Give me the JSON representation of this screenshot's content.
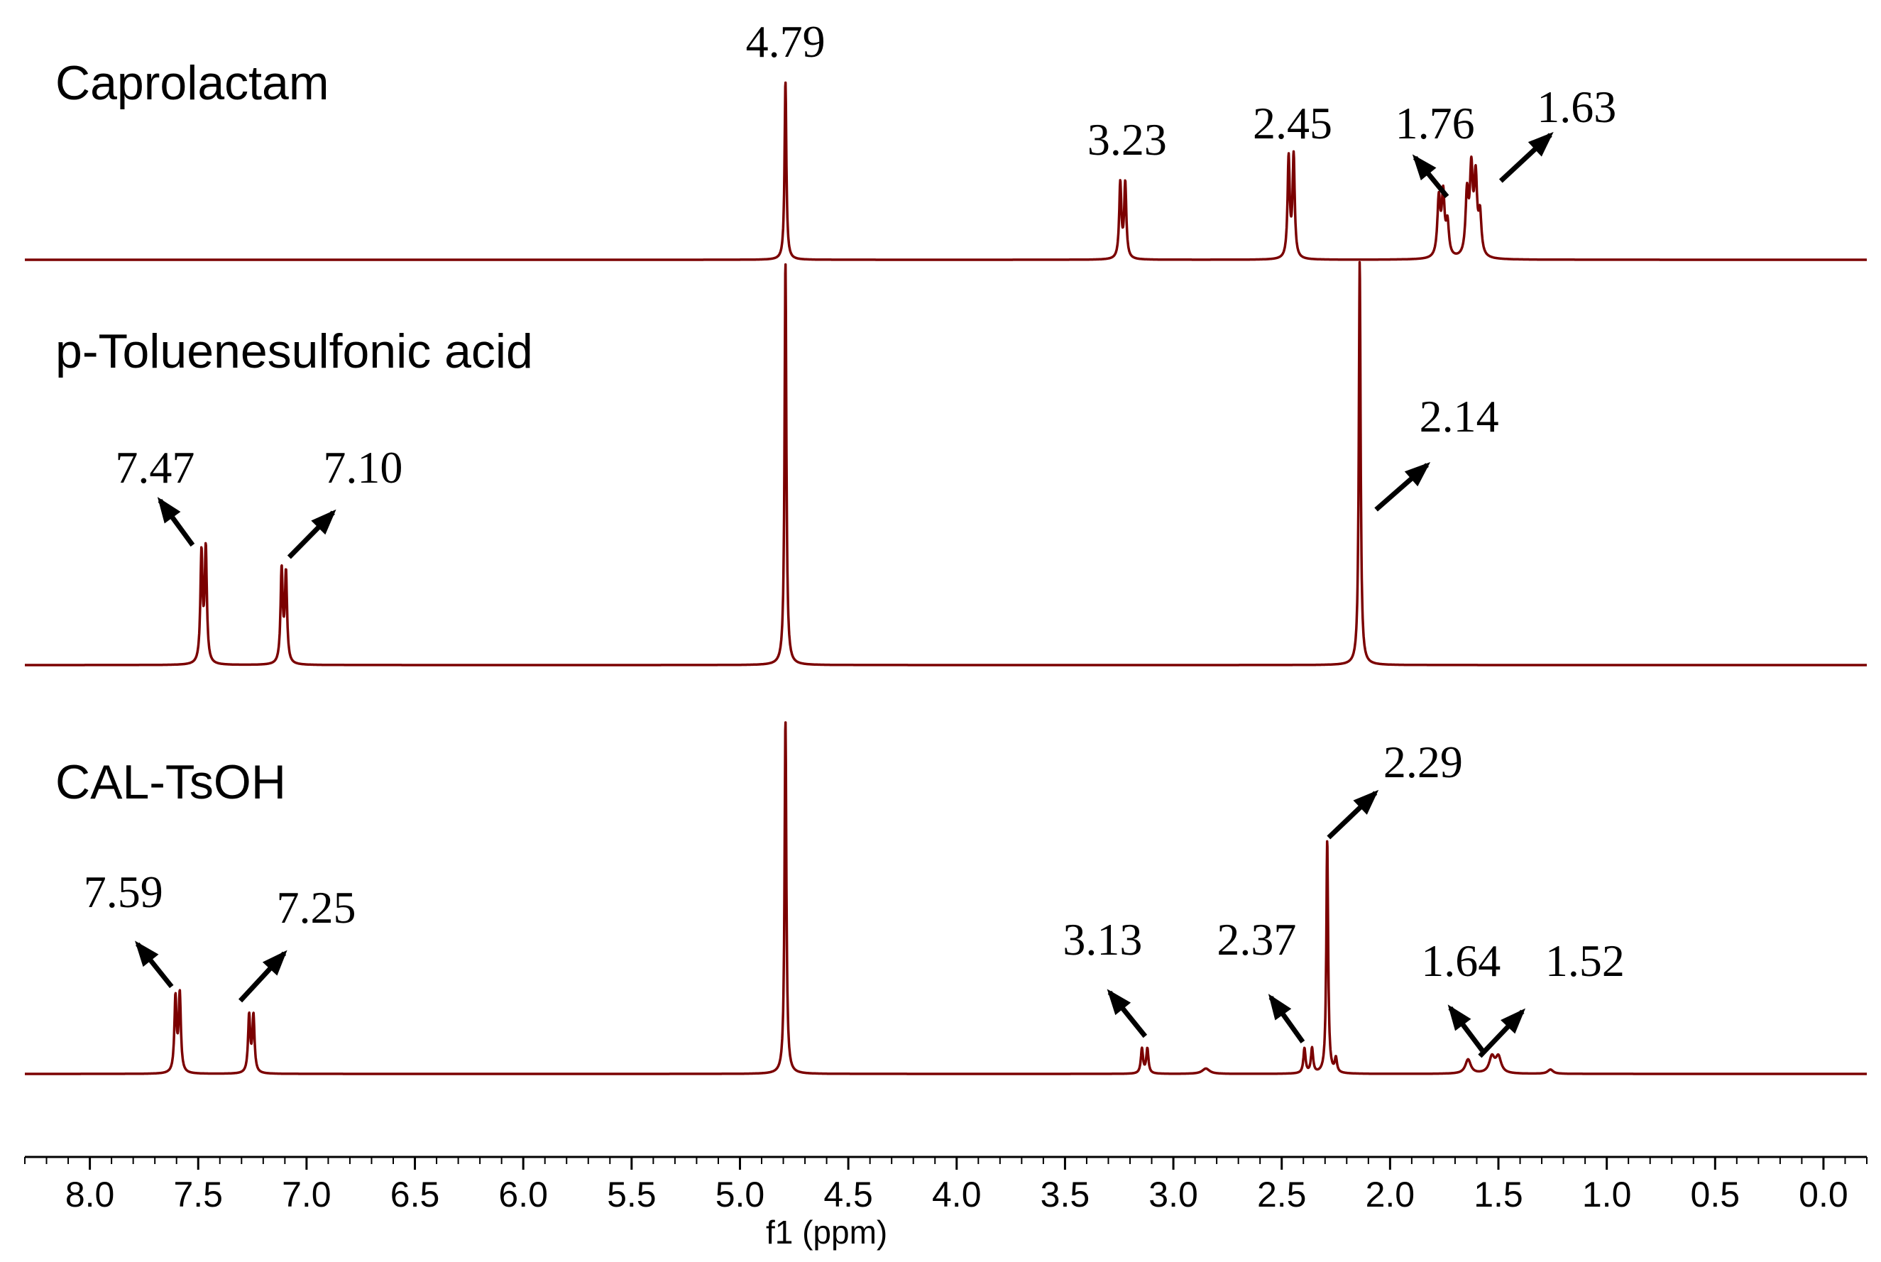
{
  "chart_data": {
    "type": "line",
    "title": "",
    "xlabel": "f1 (ppm)",
    "ylabel": "",
    "xlim": [
      8.3,
      -0.2
    ],
    "x_reversed": true,
    "grid": false,
    "line_color": "#7b0000",
    "ticks": [
      "8.0",
      "7.5",
      "7.0",
      "6.5",
      "6.0",
      "5.5",
      "5.0",
      "4.5",
      "4.0",
      "3.5",
      "3.0",
      "2.5",
      "2.0",
      "1.5",
      "1.0",
      "0.5",
      "0.0"
    ],
    "series": [
      {
        "name": "Caprolactam",
        "peaks": [
          {
            "ppm": 4.79,
            "height": 1.0,
            "width": 0.005
          },
          {
            "ppm": 3.245,
            "height": 0.42,
            "width": 0.006
          },
          {
            "ppm": 3.222,
            "height": 0.42,
            "width": 0.006
          },
          {
            "ppm": 2.468,
            "height": 0.56,
            "width": 0.006
          },
          {
            "ppm": 2.445,
            "height": 0.57,
            "width": 0.006
          },
          {
            "ppm": 1.775,
            "height": 0.32,
            "width": 0.008
          },
          {
            "ppm": 1.755,
            "height": 0.34,
            "width": 0.008
          },
          {
            "ppm": 1.735,
            "height": 0.18,
            "width": 0.008
          },
          {
            "ppm": 1.645,
            "height": 0.34,
            "width": 0.008
          },
          {
            "ppm": 1.625,
            "height": 0.46,
            "width": 0.008
          },
          {
            "ppm": 1.605,
            "height": 0.42,
            "width": 0.008
          },
          {
            "ppm": 1.585,
            "height": 0.22,
            "width": 0.008
          }
        ],
        "labels": [
          {
            "text": "4.79",
            "ppm": 4.79,
            "arrow": "none"
          },
          {
            "text": "3.23",
            "ppm": 3.23,
            "arrow": "none"
          },
          {
            "text": "2.45",
            "ppm": 2.45,
            "arrow": "none"
          },
          {
            "text": "1.76",
            "ppm": 1.76,
            "arrow": "up-left"
          },
          {
            "text": "1.63",
            "ppm": 1.63,
            "arrow": "up-right"
          }
        ]
      },
      {
        "name": "p-Toluenesulfonic acid",
        "peaks": [
          {
            "ppm": 7.485,
            "height": 0.27,
            "width": 0.006
          },
          {
            "ppm": 7.465,
            "height": 0.28,
            "width": 0.006
          },
          {
            "ppm": 7.115,
            "height": 0.23,
            "width": 0.006
          },
          {
            "ppm": 7.095,
            "height": 0.22,
            "width": 0.006
          },
          {
            "ppm": 4.79,
            "height": 1.0,
            "width": 0.005
          },
          {
            "ppm": 2.14,
            "height": 1.0,
            "width": 0.005
          }
        ],
        "labels": [
          {
            "text": "7.47",
            "ppm": 7.47,
            "arrow": "up-left"
          },
          {
            "text": "7.10",
            "ppm": 7.1,
            "arrow": "up-right"
          },
          {
            "text": "2.14",
            "ppm": 2.14,
            "arrow": "up-right"
          }
        ]
      },
      {
        "name": "CAL-TsOH",
        "peaks": [
          {
            "ppm": 7.605,
            "height": 0.21,
            "width": 0.006
          },
          {
            "ppm": 7.585,
            "height": 0.22,
            "width": 0.006
          },
          {
            "ppm": 7.265,
            "height": 0.16,
            "width": 0.006
          },
          {
            "ppm": 7.245,
            "height": 0.16,
            "width": 0.006
          },
          {
            "ppm": 4.79,
            "height": 1.0,
            "width": 0.005
          },
          {
            "ppm": 3.145,
            "height": 0.07,
            "width": 0.006
          },
          {
            "ppm": 3.12,
            "height": 0.07,
            "width": 0.006
          },
          {
            "ppm": 2.85,
            "height": 0.015,
            "width": 0.02
          },
          {
            "ppm": 2.395,
            "height": 0.07,
            "width": 0.006
          },
          {
            "ppm": 2.36,
            "height": 0.07,
            "width": 0.006
          },
          {
            "ppm": 2.29,
            "height": 0.66,
            "width": 0.005
          },
          {
            "ppm": 2.25,
            "height": 0.04,
            "width": 0.006
          },
          {
            "ppm": 1.64,
            "height": 0.04,
            "width": 0.015
          },
          {
            "ppm": 1.53,
            "height": 0.045,
            "width": 0.015
          },
          {
            "ppm": 1.5,
            "height": 0.045,
            "width": 0.015
          },
          {
            "ppm": 1.26,
            "height": 0.012,
            "width": 0.015
          }
        ],
        "labels": [
          {
            "text": "7.59",
            "ppm": 7.59,
            "arrow": "up-left"
          },
          {
            "text": "7.25",
            "ppm": 7.25,
            "arrow": "up-right"
          },
          {
            "text": "3.13",
            "ppm": 3.13,
            "arrow": "up-left"
          },
          {
            "text": "2.37",
            "ppm": 2.37,
            "arrow": "up-left"
          },
          {
            "text": "2.29",
            "ppm": 2.29,
            "arrow": "up-right"
          },
          {
            "text": "1.64",
            "ppm": 1.64,
            "arrow": "up-left"
          },
          {
            "text": "1.52",
            "ppm": 1.52,
            "arrow": "up-right"
          }
        ]
      }
    ]
  }
}
